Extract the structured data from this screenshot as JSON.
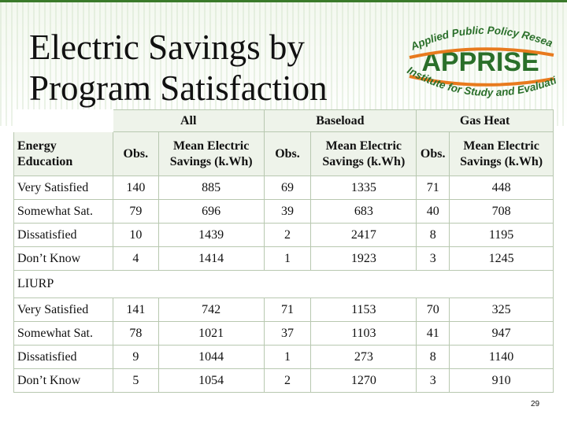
{
  "slide": {
    "title_line1": "Electric Savings by",
    "title_line2": "Program Satisfaction",
    "page_number": "29"
  },
  "logo": {
    "top_arc": "Applied Public Policy Research",
    "name": "APPRISE",
    "bottom_arc": "Institute for Study and Evaluation",
    "color_text": "#2a6f2a",
    "color_swoosh": "#e87a1e"
  },
  "table": {
    "group_headers": [
      "All",
      "Baseload",
      "Gas Heat"
    ],
    "sub_headers": {
      "obs": "Obs.",
      "mean_line1": "Mean Electric",
      "mean_line2": "Savings (k.Wh)"
    },
    "sections": [
      {
        "label_line1": "Energy",
        "label_line2": "Education",
        "highlight": "#ffff00",
        "rows": [
          {
            "label": "Very Satisfied",
            "values": [
              "140",
              "885",
              "69",
              "1335",
              "71",
              "448"
            ]
          },
          {
            "label": "Somewhat Sat.",
            "values": [
              "79",
              "696",
              "39",
              "683",
              "40",
              "708"
            ]
          },
          {
            "label": "Dissatisfied",
            "values": [
              "10",
              "1439",
              "2",
              "2417",
              "8",
              "1195"
            ]
          },
          {
            "label": "Don’t Know",
            "values": [
              "4",
              "1414",
              "1",
              "1923",
              "3",
              "1245"
            ]
          }
        ]
      },
      {
        "label": "LIURP",
        "rows": [
          {
            "label": "Very Satisfied",
            "values": [
              "141",
              "742",
              "71",
              "1153",
              "70",
              "325"
            ]
          },
          {
            "label": "Somewhat Sat.",
            "values": [
              "78",
              "1021",
              "37",
              "1103",
              "41",
              "947"
            ]
          },
          {
            "label": "Dissatisfied",
            "values": [
              "9",
              "1044",
              "1",
              "273",
              "8",
              "1140"
            ]
          },
          {
            "label": "Don’t Know",
            "values": [
              "5",
              "1054",
              "2",
              "1270",
              "3",
              "910"
            ]
          }
        ]
      }
    ]
  }
}
